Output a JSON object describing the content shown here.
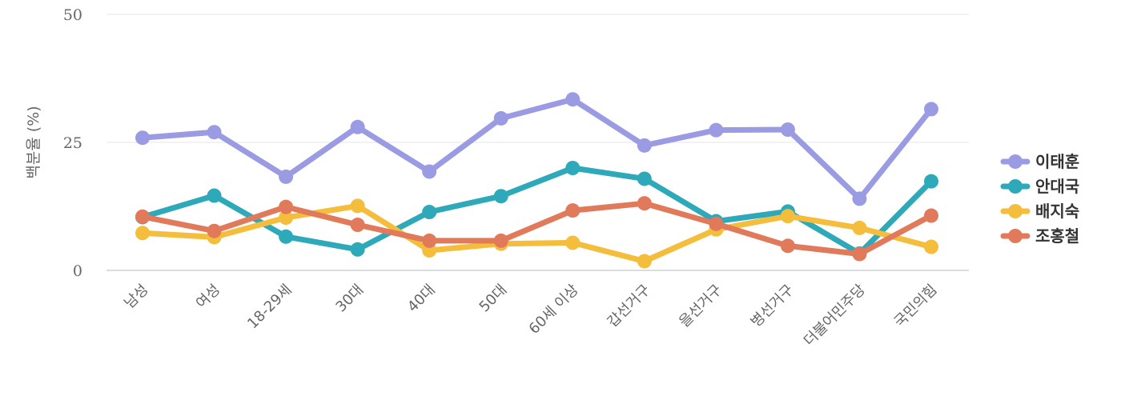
{
  "chart_data": {
    "type": "line",
    "categories": [
      "남성",
      "여성",
      "18-29세",
      "30대",
      "40대",
      "50대",
      "60세 이상",
      "갑선거구",
      "을선거구",
      "병선거구",
      "더불어민주당",
      "국민의힘"
    ],
    "series": [
      {
        "name": "이태훈",
        "color": "#9b9be4",
        "values": [
          25.9,
          27.0,
          18.3,
          28.0,
          19.3,
          29.7,
          33.4,
          24.4,
          27.4,
          27.5,
          14.0,
          31.5
        ]
      },
      {
        "name": "안대국",
        "color": "#2ea9ba",
        "values": [
          10.4,
          14.6,
          6.6,
          4.1,
          11.4,
          14.5,
          20.0,
          17.9,
          9.6,
          11.5,
          3.3,
          17.4
        ]
      },
      {
        "name": "배지숙",
        "color": "#f5bd3c",
        "values": [
          7.3,
          6.5,
          10.3,
          12.6,
          3.9,
          5.2,
          5.4,
          1.8,
          8.0,
          10.6,
          8.3,
          4.6
        ]
      },
      {
        "name": "조홍철",
        "color": "#e07a5a",
        "values": [
          10.5,
          7.7,
          12.4,
          8.9,
          5.8,
          5.8,
          11.7,
          13.1,
          9.1,
          4.8,
          3.2,
          10.7
        ]
      }
    ],
    "ylabel": "백분율 (%)",
    "xlabel": "",
    "ylim": [
      0,
      50
    ],
    "yticks": [
      "0",
      "25",
      "50"
    ],
    "grid": true,
    "legend_position": "right"
  }
}
